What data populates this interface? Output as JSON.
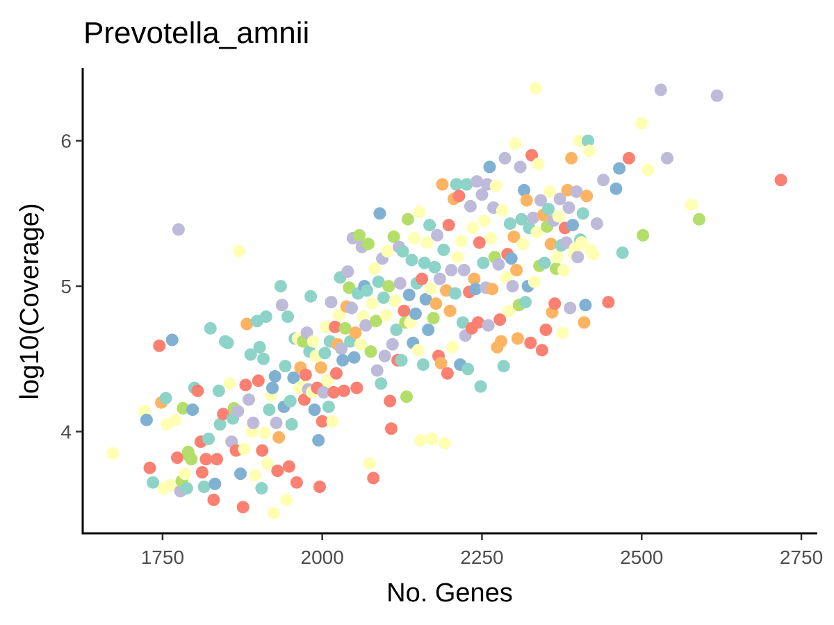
{
  "chart_data": {
    "type": "scatter",
    "title": "Prevotella_amnii",
    "xlabel": "No. Genes",
    "ylabel": "log10(Coverage)",
    "xlim": [
      1625,
      2775
    ],
    "ylim": [
      3.3,
      6.5
    ],
    "xticks": [
      1750,
      2000,
      2250,
      2500,
      2750
    ],
    "yticks": [
      4,
      5,
      6
    ],
    "grid": false,
    "legend": "none",
    "palette": [
      "#8DD3C7",
      "#FFFFB3",
      "#BEBADA",
      "#FB8072",
      "#80B1D3",
      "#FDB462",
      "#B3DE69"
    ],
    "points": [
      [
        1672,
        3.85,
        1
      ],
      [
        1722,
        4.14,
        1
      ],
      [
        1725,
        4.08,
        4
      ],
      [
        1730,
        3.75,
        3
      ],
      [
        1735,
        3.65,
        0
      ],
      [
        1745,
        4.59,
        3
      ],
      [
        1748,
        4.2,
        5
      ],
      [
        1752,
        3.61,
        1
      ],
      [
        1755,
        4.23,
        0
      ],
      [
        1757,
        4.05,
        1
      ],
      [
        1762,
        3.63,
        1
      ],
      [
        1765,
        4.63,
        4
      ],
      [
        1770,
        4.08,
        1
      ],
      [
        1773,
        3.82,
        3
      ],
      [
        1775,
        5.39,
        2
      ],
      [
        1778,
        3.59,
        2
      ],
      [
        1780,
        3.66,
        6
      ],
      [
        1782,
        4.16,
        6
      ],
      [
        1785,
        3.71,
        1
      ],
      [
        1788,
        3.61,
        0
      ],
      [
        1790,
        3.86,
        6
      ],
      [
        1792,
        3.83,
        6
      ],
      [
        1795,
        3.81,
        6
      ],
      [
        1797,
        4.15,
        4
      ],
      [
        1800,
        4.3,
        0
      ],
      [
        1805,
        4.28,
        3
      ],
      [
        1810,
        3.93,
        3
      ],
      [
        1812,
        3.72,
        3
      ],
      [
        1815,
        3.62,
        0
      ],
      [
        1818,
        3.81,
        3
      ],
      [
        1822,
        3.95,
        0
      ],
      [
        1825,
        4.71,
        0
      ],
      [
        1830,
        3.53,
        3
      ],
      [
        1832,
        3.64,
        4
      ],
      [
        1835,
        3.81,
        3
      ],
      [
        1838,
        4.28,
        0
      ],
      [
        1840,
        4.05,
        0
      ],
      [
        1845,
        4.12,
        3
      ],
      [
        1848,
        4.62,
        0
      ],
      [
        1852,
        4.61,
        0
      ],
      [
        1855,
        4.33,
        1
      ],
      [
        1858,
        3.93,
        2
      ],
      [
        1860,
        4.09,
        0
      ],
      [
        1862,
        4.16,
        6
      ],
      [
        1865,
        3.87,
        3
      ],
      [
        1868,
        4.14,
        2
      ],
      [
        1870,
        5.24,
        1
      ],
      [
        1872,
        3.71,
        4
      ],
      [
        1876,
        3.48,
        3
      ],
      [
        1878,
        3.88,
        1
      ],
      [
        1880,
        4.32,
        3
      ],
      [
        1882,
        4.74,
        5
      ],
      [
        1885,
        4.22,
        2
      ],
      [
        1888,
        4.53,
        0
      ],
      [
        1890,
        4.0,
        1
      ],
      [
        1892,
        4.06,
        2
      ],
      [
        1895,
        3.7,
        1
      ],
      [
        1898,
        4.76,
        0
      ],
      [
        1900,
        4.35,
        3
      ],
      [
        1902,
        4.58,
        0
      ],
      [
        1905,
        3.61,
        0
      ],
      [
        1906,
        3.87,
        3
      ],
      [
        1908,
        4.5,
        0
      ],
      [
        1910,
        3.99,
        1
      ],
      [
        1912,
        4.79,
        0
      ],
      [
        1914,
        3.78,
        1
      ],
      [
        1917,
        4.15,
        0
      ],
      [
        1920,
        4.25,
        1
      ],
      [
        1922,
        4.3,
        4
      ],
      [
        1924,
        3.44,
        1
      ],
      [
        1926,
        4.38,
        4
      ],
      [
        1928,
        4.06,
        2
      ],
      [
        1930,
        3.73,
        3
      ],
      [
        1932,
        3.96,
        5
      ],
      [
        1935,
        5.0,
        0
      ],
      [
        1937,
        4.87,
        2
      ],
      [
        1940,
        4.17,
        4
      ],
      [
        1942,
        4.45,
        0
      ],
      [
        1944,
        3.53,
        1
      ],
      [
        1946,
        4.79,
        0
      ],
      [
        1948,
        3.76,
        3
      ],
      [
        1950,
        4.21,
        0
      ],
      [
        1952,
        4.05,
        0
      ],
      [
        1955,
        4.37,
        4
      ],
      [
        1957,
        4.64,
        0
      ],
      [
        1960,
        3.65,
        3
      ],
      [
        1962,
        4.64,
        1
      ],
      [
        1964,
        4.3,
        1
      ],
      [
        1966,
        4.44,
        5
      ],
      [
        1968,
        4.31,
        1
      ],
      [
        1970,
        4.62,
        6
      ],
      [
        1972,
        4.22,
        3
      ],
      [
        1974,
        4.39,
        3
      ],
      [
        1976,
        4.68,
        2
      ],
      [
        1978,
        4.29,
        2
      ],
      [
        1980,
        4.55,
        0
      ],
      [
        1982,
        4.93,
        0
      ],
      [
        1984,
        4.27,
        1
      ],
      [
        1986,
        4.62,
        1
      ],
      [
        1988,
        4.15,
        4
      ],
      [
        1990,
        4.52,
        1
      ],
      [
        1992,
        4.3,
        3
      ],
      [
        1994,
        3.94,
        4
      ],
      [
        1996,
        3.62,
        3
      ],
      [
        1998,
        4.44,
        5
      ],
      [
        2000,
        4.07,
        3
      ],
      [
        2002,
        4.27,
        2
      ],
      [
        2004,
        4.54,
        0
      ],
      [
        2006,
        4.72,
        1
      ],
      [
        2008,
        4.35,
        1
      ],
      [
        2010,
        4.17,
        0
      ],
      [
        2012,
        4.62,
        0
      ],
      [
        2014,
        4.89,
        2
      ],
      [
        2016,
        4.07,
        1
      ],
      [
        2018,
        4.27,
        3
      ],
      [
        2020,
        4.72,
        3
      ],
      [
        2022,
        4.4,
        3
      ],
      [
        2024,
        4.6,
        5
      ],
      [
        2026,
        4.8,
        1
      ],
      [
        2028,
        5.06,
        0
      ],
      [
        2030,
        4.57,
        2
      ],
      [
        2032,
        4.49,
        4
      ],
      [
        2034,
        4.28,
        3
      ],
      [
        2036,
        4.71,
        6
      ],
      [
        2038,
        4.86,
        5
      ],
      [
        2040,
        5.1,
        2
      ],
      [
        2042,
        4.99,
        6
      ],
      [
        2044,
        4.62,
        0
      ],
      [
        2046,
        4.85,
        2
      ],
      [
        2048,
        5.33,
        2
      ],
      [
        2050,
        4.51,
        4
      ],
      [
        2052,
        4.68,
        5
      ],
      [
        2054,
        4.3,
        3
      ],
      [
        2056,
        4.95,
        0
      ],
      [
        2058,
        5.35,
        6
      ],
      [
        2060,
        4.6,
        1
      ],
      [
        2062,
        5.27,
        2
      ],
      [
        2064,
        4.79,
        1
      ],
      [
        2066,
        5.0,
        4
      ],
      [
        2068,
        4.73,
        2
      ],
      [
        2070,
        4.97,
        0
      ],
      [
        2072,
        5.29,
        6
      ],
      [
        2074,
        3.78,
        1
      ],
      [
        2076,
        4.55,
        6
      ],
      [
        2078,
        4.88,
        1
      ],
      [
        2080,
        3.68,
        3
      ],
      [
        2082,
        5.12,
        1
      ],
      [
        2084,
        4.76,
        6
      ],
      [
        2086,
        4.42,
        2
      ],
      [
        2088,
        5.03,
        0
      ],
      [
        2090,
        5.5,
        4
      ],
      [
        2092,
        4.33,
        0
      ],
      [
        2094,
        5.19,
        2
      ],
      [
        2096,
        4.92,
        0
      ],
      [
        2098,
        4.52,
        2
      ],
      [
        2100,
        4.8,
        1
      ],
      [
        2102,
        5.24,
        1
      ],
      [
        2104,
        5.0,
        6
      ],
      [
        2106,
        4.21,
        3
      ],
      [
        2108,
        4.02,
        3
      ],
      [
        2110,
        4.6,
        2
      ],
      [
        2112,
        5.34,
        6
      ],
      [
        2114,
        4.9,
        1
      ],
      [
        2116,
        4.7,
        0
      ],
      [
        2118,
        4.49,
        3
      ],
      [
        2120,
        5.27,
        2
      ],
      [
        2122,
        5.02,
        2
      ],
      [
        2124,
        4.49,
        0
      ],
      [
        2126,
        5.24,
        0
      ],
      [
        2128,
        4.83,
        3
      ],
      [
        2130,
        4.75,
        6
      ],
      [
        2132,
        4.24,
        6
      ],
      [
        2134,
        5.46,
        6
      ],
      [
        2136,
        4.94,
        4
      ],
      [
        2138,
        4.75,
        1
      ],
      [
        2140,
        5.18,
        0
      ],
      [
        2142,
        4.61,
        4
      ],
      [
        2144,
        5.33,
        1
      ],
      [
        2146,
        4.81,
        4
      ],
      [
        2148,
        5.02,
        0
      ],
      [
        2150,
        4.56,
        1
      ],
      [
        2152,
        5.51,
        1
      ],
      [
        2154,
        3.94,
        1
      ],
      [
        2156,
        5.05,
        3
      ],
      [
        2158,
        4.46,
        0
      ],
      [
        2160,
        5.16,
        0
      ],
      [
        2162,
        4.91,
        4
      ],
      [
        2164,
        5.3,
        1
      ],
      [
        2166,
        4.7,
        4
      ],
      [
        2168,
        5.42,
        0
      ],
      [
        2170,
        4.98,
        1
      ],
      [
        2172,
        3.95,
        1
      ],
      [
        2174,
        4.78,
        6
      ],
      [
        2176,
        5.13,
        0
      ],
      [
        2178,
        4.88,
        5
      ],
      [
        2180,
        5.35,
        2
      ],
      [
        2182,
        4.52,
        3
      ],
      [
        2184,
        5.05,
        2
      ],
      [
        2186,
        4.47,
        5
      ],
      [
        2188,
        5.7,
        5
      ],
      [
        2190,
        5.25,
        0
      ],
      [
        2192,
        3.92,
        1
      ],
      [
        2194,
        4.97,
        5
      ],
      [
        2196,
        4.4,
        3
      ],
      [
        2198,
        5.42,
        3
      ],
      [
        2200,
        4.83,
        5
      ],
      [
        2202,
        5.11,
        2
      ],
      [
        2204,
        4.58,
        1
      ],
      [
        2206,
        5.6,
        5
      ],
      [
        2208,
        4.95,
        0
      ],
      [
        2210,
        5.7,
        0
      ],
      [
        2212,
        5.2,
        1
      ],
      [
        2214,
        5.62,
        3
      ],
      [
        2216,
        4.46,
        4
      ],
      [
        2218,
        5.31,
        1
      ],
      [
        2220,
        4.75,
        0
      ],
      [
        2222,
        5.11,
        2
      ],
      [
        2224,
        4.66,
        2
      ],
      [
        2226,
        5.7,
        0
      ],
      [
        2228,
        4.43,
        0
      ],
      [
        2230,
        4.96,
        3
      ],
      [
        2232,
        5.55,
        2
      ],
      [
        2234,
        4.71,
        3
      ],
      [
        2236,
        5.4,
        1
      ],
      [
        2238,
        5.05,
        5
      ],
      [
        2240,
        4.98,
        4
      ],
      [
        2242,
        5.72,
        2
      ],
      [
        2244,
        4.75,
        3
      ],
      [
        2246,
        5.3,
        3
      ],
      [
        2248,
        4.31,
        0
      ],
      [
        2250,
        5.63,
        2
      ],
      [
        2252,
        5.16,
        0
      ],
      [
        2254,
        5.45,
        1
      ],
      [
        2256,
        4.99,
        2
      ],
      [
        2258,
        5.7,
        2
      ],
      [
        2260,
        4.73,
        2
      ],
      [
        2262,
        5.82,
        4
      ],
      [
        2264,
        5.33,
        1
      ],
      [
        2266,
        4.98,
        5
      ],
      [
        2268,
        5.54,
        2
      ],
      [
        2270,
        5.2,
        6
      ],
      [
        2272,
        5.69,
        1
      ],
      [
        2274,
        4.58,
        5
      ],
      [
        2276,
        5.15,
        2
      ],
      [
        2278,
        4.77,
        3
      ],
      [
        2280,
        4.62,
        5
      ],
      [
        2282,
        5.52,
        1
      ],
      [
        2284,
        4.45,
        0
      ],
      [
        2286,
        5.88,
        2
      ],
      [
        2288,
        5.06,
        1
      ],
      [
        2290,
        5.22,
        3
      ],
      [
        2292,
        4.83,
        1
      ],
      [
        2294,
        5.43,
        0
      ],
      [
        2296,
        5.19,
        4
      ],
      [
        2298,
        5.0,
        2
      ],
      [
        2300,
        5.34,
        5
      ],
      [
        2302,
        5.98,
        1
      ],
      [
        2304,
        5.11,
        5
      ],
      [
        2306,
        4.64,
        5
      ],
      [
        2308,
        4.87,
        6
      ],
      [
        2310,
        5.82,
        2
      ],
      [
        2312,
        5.46,
        0
      ],
      [
        2314,
        5.29,
        1
      ],
      [
        2316,
        5.66,
        4
      ],
      [
        2318,
        4.89,
        0
      ],
      [
        2320,
        5.59,
        5
      ],
      [
        2322,
        5.0,
        4
      ],
      [
        2324,
        5.4,
        0
      ],
      [
        2326,
        4.61,
        3
      ],
      [
        2328,
        5.9,
        3
      ],
      [
        2330,
        5.47,
        2
      ],
      [
        2332,
        5.03,
        1
      ],
      [
        2334,
        6.36,
        1
      ],
      [
        2336,
        5.37,
        1
      ],
      [
        2338,
        5.84,
        1
      ],
      [
        2340,
        5.14,
        6
      ],
      [
        2342,
        5.59,
        2
      ],
      [
        2344,
        4.56,
        3
      ],
      [
        2346,
        5.49,
        5
      ],
      [
        2348,
        5.16,
        0
      ],
      [
        2350,
        4.7,
        3
      ],
      [
        2352,
        5.41,
        6
      ],
      [
        2354,
        5.53,
        0
      ],
      [
        2356,
        5.65,
        1
      ],
      [
        2358,
        5.29,
        5
      ],
      [
        2360,
        4.82,
        5
      ],
      [
        2362,
        5.45,
        2
      ],
      [
        2364,
        4.88,
        3
      ],
      [
        2366,
        5.12,
        6
      ],
      [
        2368,
        5.2,
        1
      ],
      [
        2370,
        5.48,
        1
      ],
      [
        2372,
        5.6,
        2
      ],
      [
        2374,
        5.28,
        0
      ],
      [
        2376,
        4.68,
        1
      ],
      [
        2378,
        5.11,
        1
      ],
      [
        2380,
        5.4,
        3
      ],
      [
        2382,
        5.3,
        2
      ],
      [
        2384,
        5.66,
        5
      ],
      [
        2386,
        5.54,
        2
      ],
      [
        2388,
        4.85,
        2
      ],
      [
        2390,
        5.88,
        5
      ],
      [
        2392,
        5.42,
        4
      ],
      [
        2394,
        5.22,
        1
      ],
      [
        2396,
        5.26,
        1
      ],
      [
        2398,
        5.65,
        2
      ],
      [
        2400,
        5.2,
        2
      ],
      [
        2402,
        6.0,
        1
      ],
      [
        2404,
        5.32,
        0
      ],
      [
        2406,
        5.3,
        1
      ],
      [
        2408,
        5.5,
        0
      ],
      [
        2410,
        4.75,
        5
      ],
      [
        2412,
        4.87,
        4
      ],
      [
        2414,
        5.62,
        5
      ],
      [
        2416,
        6.0,
        0
      ],
      [
        2418,
        5.93,
        1
      ],
      [
        2420,
        5.25,
        1
      ],
      [
        2424,
        5.22,
        1
      ],
      [
        2430,
        5.43,
        2
      ],
      [
        2440,
        5.73,
        2
      ],
      [
        2448,
        4.89,
        3
      ],
      [
        2460,
        5.67,
        4
      ],
      [
        2465,
        5.81,
        4
      ],
      [
        2470,
        5.23,
        0
      ],
      [
        2480,
        5.88,
        3
      ],
      [
        2500,
        6.12,
        1
      ],
      [
        2502,
        5.35,
        6
      ],
      [
        2510,
        5.8,
        1
      ],
      [
        2530,
        6.35,
        2
      ],
      [
        2540,
        5.88,
        2
      ],
      [
        2578,
        5.56,
        1
      ],
      [
        2590,
        5.46,
        6
      ],
      [
        2618,
        6.31,
        2
      ],
      [
        2718,
        5.73,
        3
      ]
    ]
  }
}
